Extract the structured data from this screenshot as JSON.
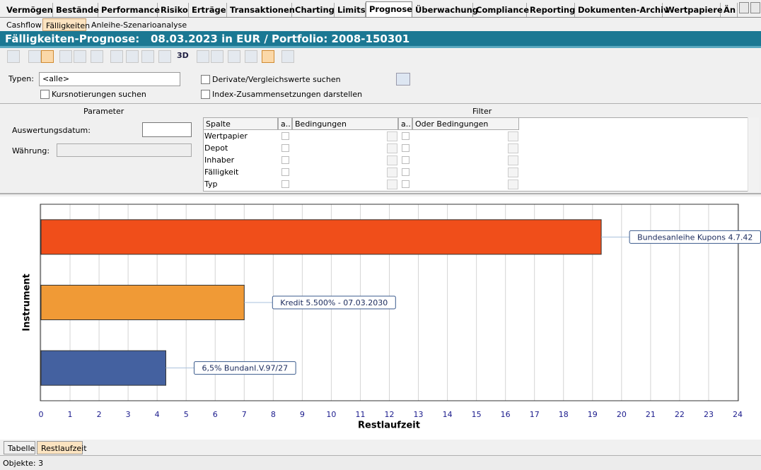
{
  "tabs": [
    "Vermögen",
    "Bestände",
    "Performance",
    "Risiko",
    "Erträge",
    "Transaktionen",
    "Charting",
    "Limits",
    "Prognose",
    "Überwachung",
    "Compliance",
    "Reporting",
    "Dokumenten-Archiv",
    "Wertpapiere",
    "Än"
  ],
  "subtabs": [
    "Cashflow",
    "Fälligkeiten",
    "Anleihe-Szenarioanalyse"
  ],
  "header": {
    "title": "Fälligkeiten-Prognose:   08.03.2023 in EUR / Portfolio: 2008-150301"
  },
  "toolbar": {
    "three_d": "3D"
  },
  "form": {
    "types_label": "Typen:",
    "types_value": "<alle>",
    "quotes": "Kursnotierungen suchen",
    "derivatives": "Derivate/Vergleichswerte suchen",
    "index": "Index-Zusammensetzungen darstellen"
  },
  "parameter": {
    "title": "Parameter",
    "date_label": "Auswertungsdatum:",
    "currency_label": "Währung:"
  },
  "filter": {
    "title": "Filter",
    "columns": [
      "Spalte",
      "a..",
      "Bedingungen",
      "a..",
      "Oder Bedingungen"
    ],
    "rows": [
      "Wertpapier",
      "Depot",
      "Inhaber",
      "Fälligkeit",
      "Typ"
    ]
  },
  "chart_data": {
    "type": "bar",
    "orientation": "horizontal",
    "categories": [
      "Bundesanleihe Kupons 4.7.42",
      "Kredit 5.500% - 07.03.2030",
      "6,5% BundanI.V.97/27"
    ],
    "values": [
      19.3,
      7.0,
      4.3
    ],
    "colors": [
      "#f04e1a",
      "#f09a36",
      "#4461a0"
    ],
    "xlabel": "Restlaufzeit",
    "ylabel": "Instrument",
    "xlim": [
      0,
      24
    ],
    "xticks": [
      0,
      1,
      2,
      3,
      4,
      5,
      6,
      7,
      8,
      9,
      10,
      11,
      12,
      13,
      14,
      15,
      16,
      17,
      18,
      19,
      20,
      21,
      22,
      23,
      24
    ],
    "grid": true
  },
  "bottom_tabs": [
    "Tabelle",
    "Restlaufzeit"
  ],
  "status": "Objekte: 3"
}
